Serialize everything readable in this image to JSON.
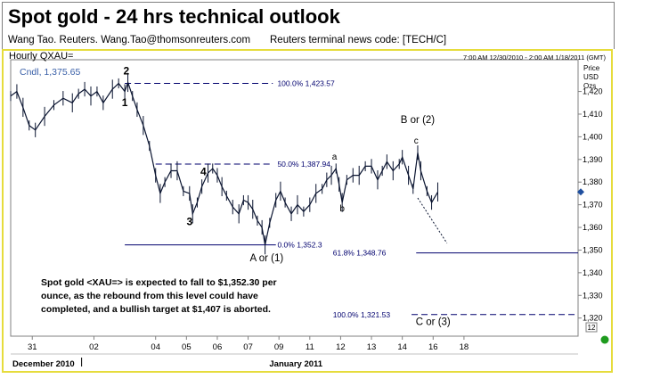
{
  "header": {
    "title": "Spot gold - 24 hrs technical outlook",
    "author": "Wang Tao.  Reuters.  Wang.Tao@thomsonreuters.com",
    "terminal_code": "Reuters terminal news code:  [TECH/C]"
  },
  "chart_data": {
    "type": "line",
    "title": "Hourly QXAU=",
    "subtitle": "Cndl, 1,375.65",
    "date_range": "7:00 AM 12/30/2010 - 2:00 AM 1/18/2011 (GMT)",
    "ylabel": "Price USD Ozs",
    "ylabel_lines": [
      "Price",
      "USD",
      "Ozs"
    ],
    "ylim": [
      1312,
      1434
    ],
    "yticks": [
      1320,
      1330,
      1340,
      1350,
      1360,
      1370,
      1380,
      1390,
      1400,
      1410,
      1420
    ],
    "ytick_labels": [
      "1,320",
      "1,330",
      "1,340",
      "1,350",
      "1,360",
      "1,370",
      "1,380",
      "1,390",
      "1,400",
      "1,410",
      "1,420"
    ],
    "xlim": [
      -0.7,
      17.7
    ],
    "xticks": [
      {
        "x": 0,
        "label": "31"
      },
      {
        "x": 2,
        "label": "02"
      },
      {
        "x": 4,
        "label": "04"
      },
      {
        "x": 5,
        "label": "05"
      },
      {
        "x": 6,
        "label": "06"
      },
      {
        "x": 7,
        "label": "07"
      },
      {
        "x": 8,
        "label": "09"
      },
      {
        "x": 9,
        "label": "11"
      },
      {
        "x": 10,
        "label": "12"
      },
      {
        "x": 11,
        "label": "13"
      },
      {
        "x": 12,
        "label": "14"
      },
      {
        "x": 13,
        "label": "16"
      },
      {
        "x": 14,
        "label": "18"
      }
    ],
    "month_labels": [
      "December 2010",
      "January 2011"
    ],
    "last_price_marker": 1375.65,
    "series": [
      {
        "points": [
          [
            -0.7,
            1418
          ],
          [
            -0.5,
            1420
          ],
          [
            -0.3,
            1413
          ],
          [
            -0.1,
            1405
          ],
          [
            0.1,
            1403
          ],
          [
            0.4,
            1409
          ],
          [
            0.7,
            1414
          ],
          [
            1.0,
            1417
          ],
          [
            1.3,
            1415
          ],
          [
            1.5,
            1419
          ],
          [
            1.7,
            1421
          ],
          [
            1.9,
            1418
          ],
          [
            2.1,
            1420
          ],
          [
            2.3,
            1415
          ],
          [
            2.6,
            1421
          ],
          [
            2.8,
            1423.57
          ],
          [
            3.0,
            1420
          ],
          [
            3.1,
            1424
          ],
          [
            3.25,
            1418
          ],
          [
            3.4,
            1412
          ],
          [
            3.6,
            1405
          ],
          [
            3.8,
            1396
          ],
          [
            4.0,
            1383
          ],
          [
            4.15,
            1375
          ],
          [
            4.3,
            1380
          ],
          [
            4.5,
            1385
          ],
          [
            4.7,
            1385
          ],
          [
            4.9,
            1376
          ],
          [
            5.1,
            1375
          ],
          [
            5.2,
            1366
          ],
          [
            5.35,
            1371
          ],
          [
            5.5,
            1378
          ],
          [
            5.7,
            1384
          ],
          [
            5.85,
            1386
          ],
          [
            6.0,
            1383
          ],
          [
            6.15,
            1378
          ],
          [
            6.3,
            1374
          ],
          [
            6.5,
            1369
          ],
          [
            6.7,
            1366
          ],
          [
            6.85,
            1372
          ],
          [
            7.0,
            1371
          ],
          [
            7.15,
            1368
          ],
          [
            7.3,
            1363
          ],
          [
            7.45,
            1360
          ],
          [
            7.55,
            1352.3
          ],
          [
            7.7,
            1362
          ],
          [
            7.9,
            1372
          ],
          [
            8.05,
            1376
          ],
          [
            8.2,
            1371
          ],
          [
            8.4,
            1366
          ],
          [
            8.6,
            1370
          ],
          [
            8.8,
            1367
          ],
          [
            9.0,
            1370
          ],
          [
            9.2,
            1375
          ],
          [
            9.4,
            1377
          ],
          [
            9.55,
            1381
          ],
          [
            9.7,
            1383
          ],
          [
            9.85,
            1386
          ],
          [
            9.95,
            1379
          ],
          [
            10.05,
            1371
          ],
          [
            10.2,
            1381
          ],
          [
            10.4,
            1383
          ],
          [
            10.6,
            1383
          ],
          [
            10.8,
            1387
          ],
          [
            11.0,
            1387
          ],
          [
            11.2,
            1381
          ],
          [
            11.35,
            1385
          ],
          [
            11.5,
            1389
          ],
          [
            11.7,
            1385
          ],
          [
            11.9,
            1388
          ],
          [
            12.0,
            1391
          ],
          [
            12.2,
            1383
          ],
          [
            12.35,
            1377
          ],
          [
            12.5,
            1393
          ],
          [
            12.6,
            1385
          ],
          [
            12.8,
            1376
          ],
          [
            12.95,
            1371
          ],
          [
            13.15,
            1375.65
          ]
        ]
      }
    ],
    "levels": [
      {
        "label": "100.0%",
        "value": 1423.57,
        "text": "1,423.57"
      },
      {
        "label": "50.0%",
        "value": 1387.94,
        "text": "1,387.94"
      },
      {
        "label": "0.0%",
        "value": 1352.3,
        "text": "1,352.3"
      },
      {
        "label": "61.8%",
        "value": 1348.76,
        "text": "1,348.76"
      },
      {
        "label": "100.0%",
        "value": 1321.53,
        "text": "1,321.53"
      }
    ],
    "wave_labels": [
      {
        "text": "2",
        "x": 3.05,
        "y": 1427.5
      },
      {
        "text": "1",
        "x": 3.0,
        "y": 1413.5
      },
      {
        "text": "4",
        "x": 5.55,
        "y": 1383
      },
      {
        "text": "3",
        "x": 5.1,
        "y": 1361
      },
      {
        "text": "A or (1)",
        "x": 7.6,
        "y": 1345
      },
      {
        "text": "a",
        "x": 9.8,
        "y": 1390
      },
      {
        "text": "b",
        "x": 10.05,
        "y": 1367
      },
      {
        "text": "c",
        "x": 12.45,
        "y": 1397
      },
      {
        "text": "B or (2)",
        "x": 12.5,
        "y": 1406
      },
      {
        "text": "C or (3)",
        "x": 13.0,
        "y": 1317
      }
    ],
    "annotation": [
      "Spot gold <XAU=> is expected to fall to $1,352.30 per",
      "ounce, as the rebound from this level could have",
      "completed, and a bullish target at $1,407 is aborted."
    ],
    "projection": [
      [
        12.5,
        1373
      ],
      [
        13.45,
        1353
      ]
    ],
    "corner_badge": "12",
    "colors": {
      "frame": "#e6dc3c",
      "line": "#0a1430",
      "level": "#00006e",
      "level_text": "#00006e",
      "subtitle": "#3a60a8",
      "marker": "#1f4f9f",
      "status_dot": "#1e9b1e",
      "text": "#000000"
    }
  }
}
